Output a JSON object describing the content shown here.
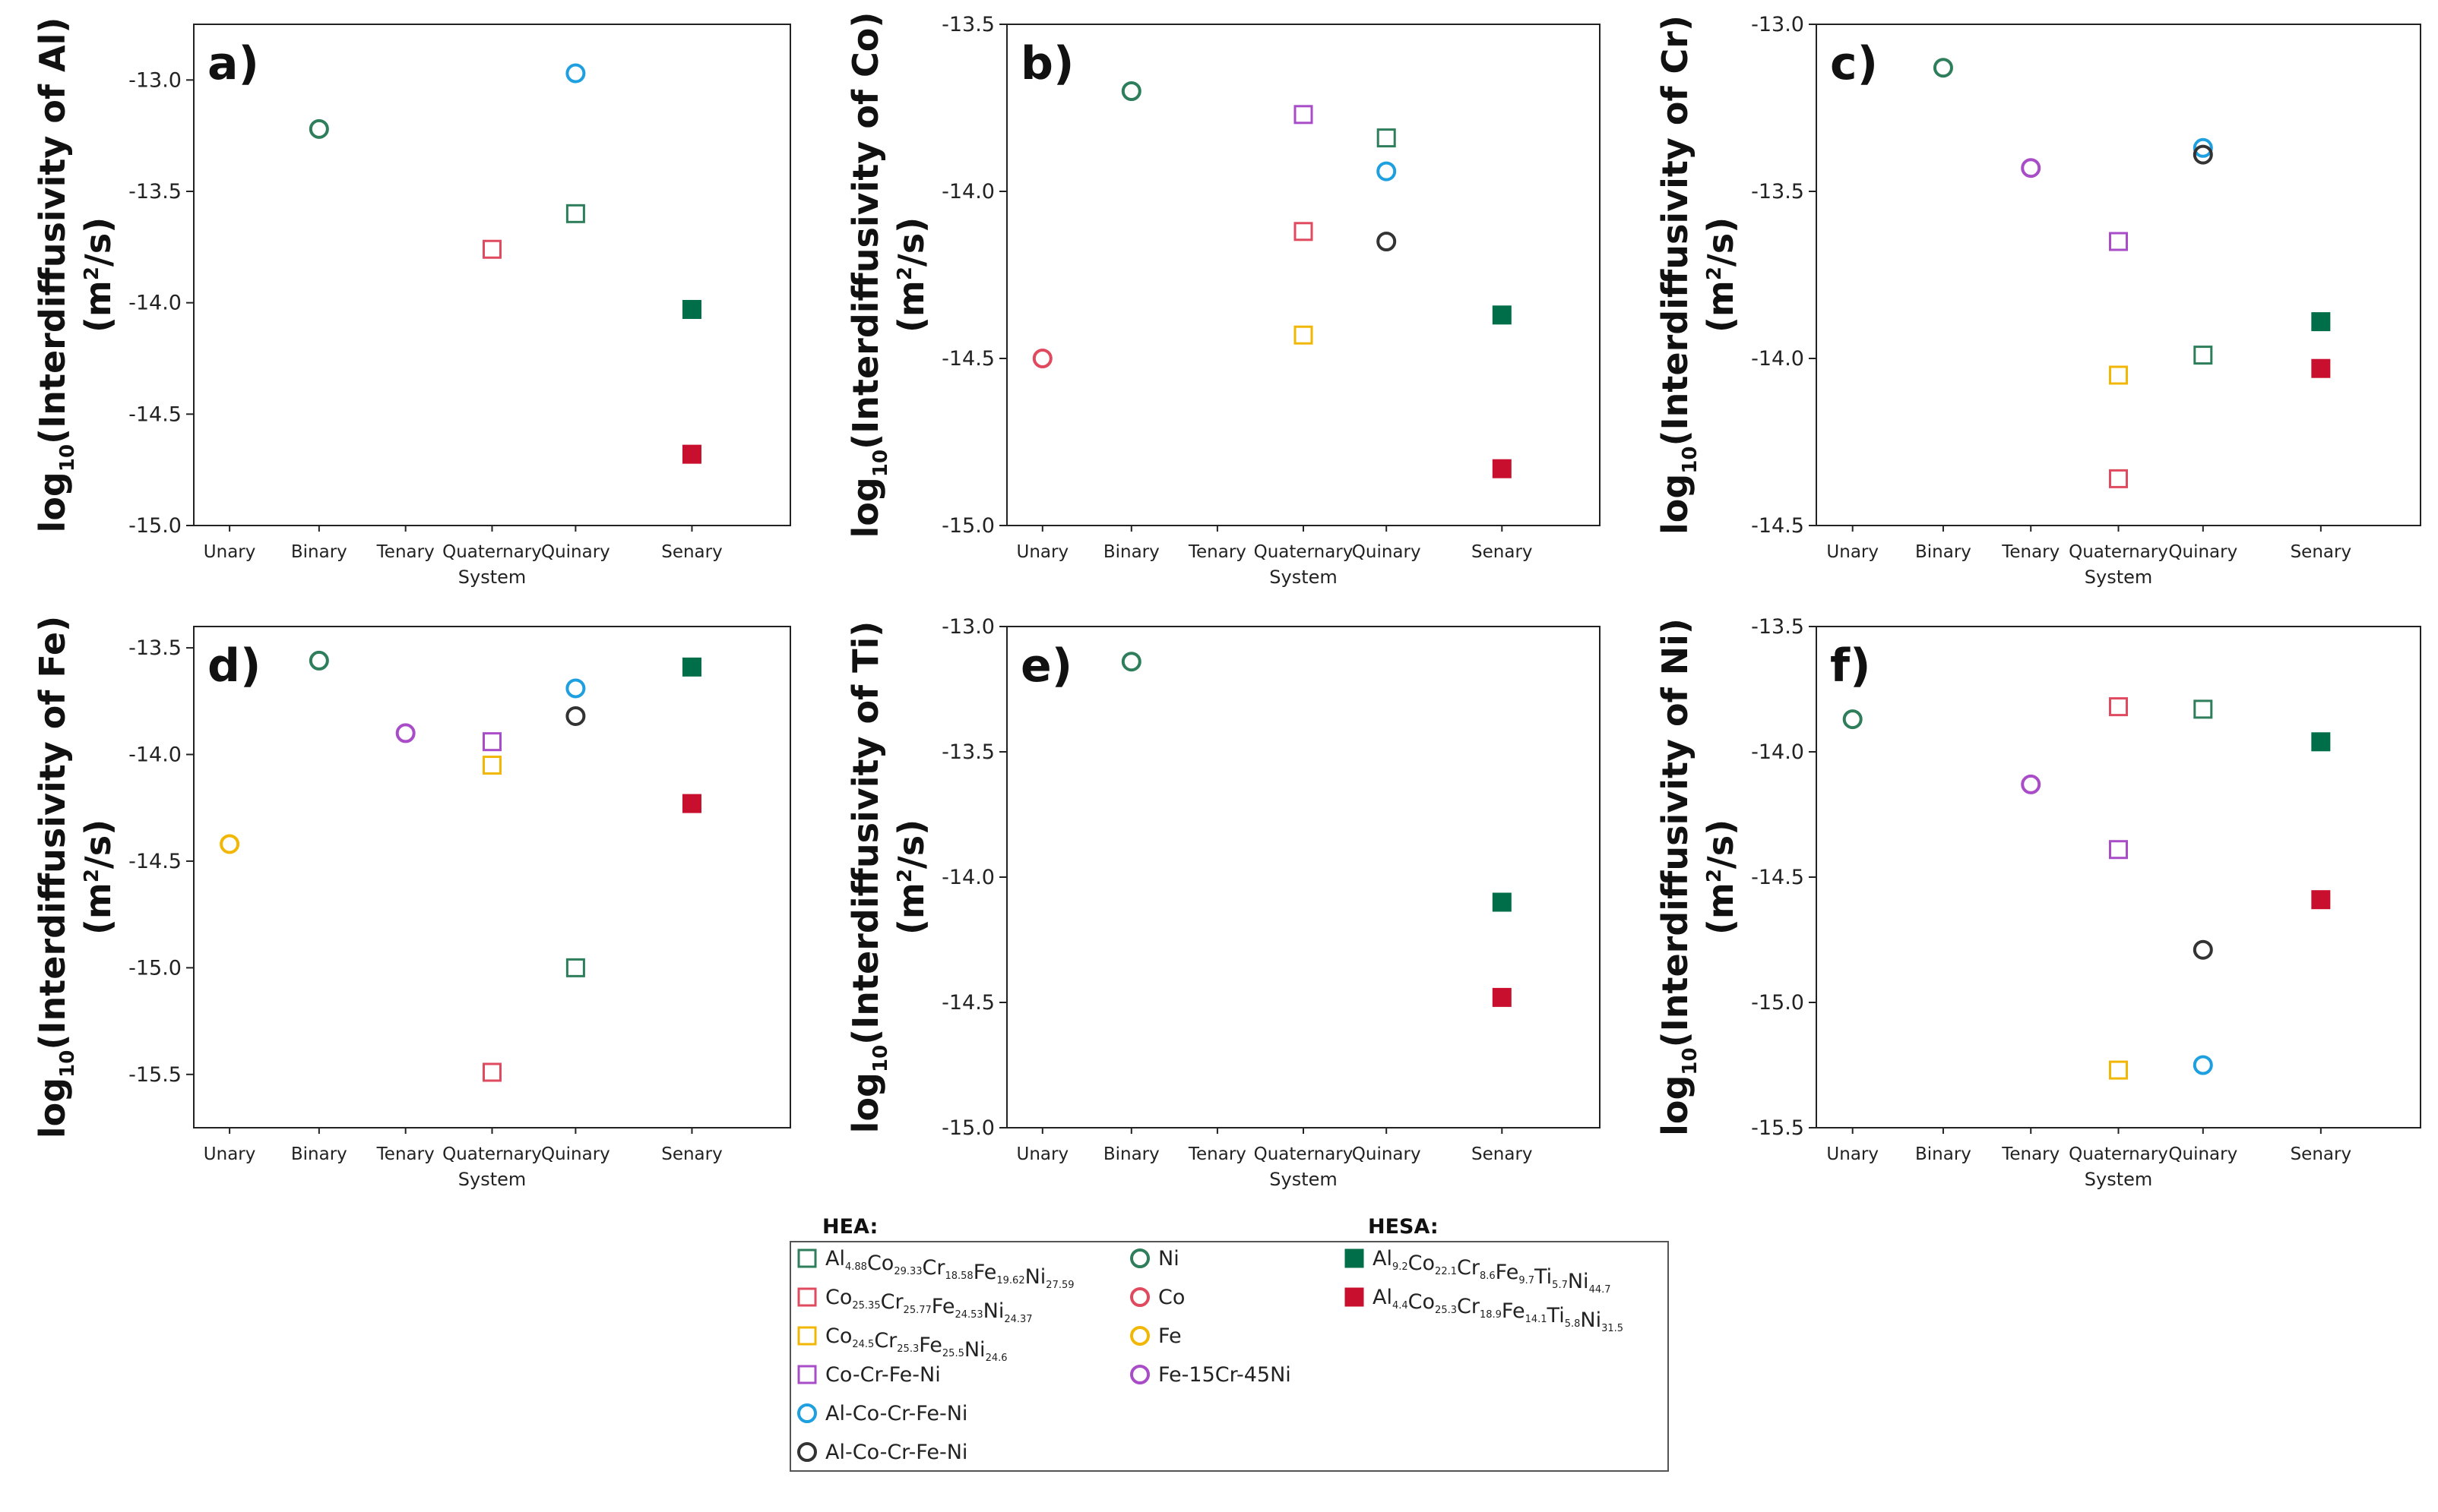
{
  "colors": {
    "green": "#2e7d5b",
    "red": "#e04a5f",
    "yellow": "#f2b705",
    "purple": "#a94cc8",
    "blue": "#1ea0e0",
    "black": "#333333",
    "green_solid": "#006e48",
    "red_solid": "#c8102e"
  },
  "chart_data": [
    {
      "id": "a",
      "type": "scatter",
      "panel_label": "a)",
      "ylabel_prefix": "log",
      "ylabel_sub": "10",
      "ylabel_main": "(Interdiffusivity of Al)",
      "ylabel_unit_pre": "(m",
      "ylabel_unit_sup": "2",
      "ylabel_unit_post": "/s)",
      "xlabel": "System",
      "categories": [
        "Unary",
        "Binary",
        "Tenary",
        "Quaternary",
        "Quinary",
        "Senary"
      ],
      "ylim": [
        -15.0,
        -12.75
      ],
      "yticks": [
        "-13.0",
        "-13.5",
        "-14.0",
        "-14.5",
        "-15.0"
      ],
      "ytick_values": [
        -13.0,
        -13.5,
        -14.0,
        -14.5,
        -15.0
      ],
      "points": [
        {
          "x": 1,
          "y": -13.22,
          "marker": "circle",
          "color": "green"
        },
        {
          "x": 3,
          "y": -13.76,
          "marker": "square",
          "color": "red"
        },
        {
          "x": 4,
          "y": -12.97,
          "marker": "circle",
          "color": "blue"
        },
        {
          "x": 4,
          "y": -13.6,
          "marker": "square",
          "color": "green"
        },
        {
          "x": 5,
          "y": -14.03,
          "marker": "filled-square",
          "color": "green_solid"
        },
        {
          "x": 5,
          "y": -14.68,
          "marker": "filled-square",
          "color": "red_solid"
        }
      ]
    },
    {
      "id": "b",
      "type": "scatter",
      "panel_label": "b)",
      "ylabel_prefix": "log",
      "ylabel_sub": "10",
      "ylabel_main": "(Interdiffusivity of Co)",
      "ylabel_unit_pre": "(m",
      "ylabel_unit_sup": "2",
      "ylabel_unit_post": "/s)",
      "xlabel": "System",
      "categories": [
        "Unary",
        "Binary",
        "Tenary",
        "Quaternary",
        "Quinary",
        "Senary"
      ],
      "ylim": [
        -15.0,
        -13.5
      ],
      "yticks": [
        "-13.5",
        "-14.0",
        "-14.5",
        "-15.0"
      ],
      "ytick_values": [
        -13.5,
        -14.0,
        -14.5,
        -15.0
      ],
      "points": [
        {
          "x": 0,
          "y": -14.5,
          "marker": "circle",
          "color": "red"
        },
        {
          "x": 1,
          "y": -13.7,
          "marker": "circle",
          "color": "green"
        },
        {
          "x": 3,
          "y": -13.77,
          "marker": "square",
          "color": "purple"
        },
        {
          "x": 3,
          "y": -14.12,
          "marker": "square",
          "color": "red"
        },
        {
          "x": 3,
          "y": -14.43,
          "marker": "square",
          "color": "yellow"
        },
        {
          "x": 4,
          "y": -13.84,
          "marker": "square",
          "color": "green"
        },
        {
          "x": 4,
          "y": -13.94,
          "marker": "circle",
          "color": "blue"
        },
        {
          "x": 4,
          "y": -14.15,
          "marker": "circle",
          "color": "black"
        },
        {
          "x": 5,
          "y": -14.37,
          "marker": "filled-square",
          "color": "green_solid"
        },
        {
          "x": 5,
          "y": -14.83,
          "marker": "filled-square",
          "color": "red_solid"
        }
      ]
    },
    {
      "id": "c",
      "type": "scatter",
      "panel_label": "c)",
      "ylabel_prefix": "log",
      "ylabel_sub": "10",
      "ylabel_main": "(Interdiffusivity of Cr)",
      "ylabel_unit_pre": "(m",
      "ylabel_unit_sup": "2",
      "ylabel_unit_post": "/s)",
      "xlabel": "System",
      "categories": [
        "Unary",
        "Binary",
        "Tenary",
        "Quaternary",
        "Quinary",
        "Senary"
      ],
      "ylim": [
        -14.5,
        -13.0
      ],
      "yticks": [
        "-13.0",
        "-13.5",
        "-14.0",
        "-14.5"
      ],
      "ytick_values": [
        -13.0,
        -13.5,
        -14.0,
        -14.5
      ],
      "points": [
        {
          "x": 1,
          "y": -13.13,
          "marker": "circle",
          "color": "green"
        },
        {
          "x": 2,
          "y": -13.43,
          "marker": "circle",
          "color": "purple"
        },
        {
          "x": 3,
          "y": -13.65,
          "marker": "square",
          "color": "purple"
        },
        {
          "x": 3,
          "y": -14.05,
          "marker": "square",
          "color": "yellow"
        },
        {
          "x": 3,
          "y": -14.36,
          "marker": "square",
          "color": "red"
        },
        {
          "x": 4,
          "y": -13.37,
          "marker": "circle",
          "color": "blue"
        },
        {
          "x": 4,
          "y": -13.39,
          "marker": "circle",
          "color": "black"
        },
        {
          "x": 4,
          "y": -13.99,
          "marker": "square",
          "color": "green"
        },
        {
          "x": 5,
          "y": -13.89,
          "marker": "filled-square",
          "color": "green_solid"
        },
        {
          "x": 5,
          "y": -14.03,
          "marker": "filled-square",
          "color": "red_solid"
        }
      ]
    },
    {
      "id": "d",
      "type": "scatter",
      "panel_label": "d)",
      "ylabel_prefix": "log",
      "ylabel_sub": "10",
      "ylabel_main": "(Interdiffusivity of Fe)",
      "ylabel_unit_pre": "(m",
      "ylabel_unit_sup": "2",
      "ylabel_unit_post": "/s)",
      "xlabel": "System",
      "categories": [
        "Unary",
        "Binary",
        "Tenary",
        "Quaternary",
        "Quinary",
        "Senary"
      ],
      "ylim": [
        -15.75,
        -13.4
      ],
      "yticks": [
        "-13.5",
        "-14.0",
        "-14.5",
        "-15.0",
        "-15.5"
      ],
      "ytick_values": [
        -13.5,
        -14.0,
        -14.5,
        -15.0,
        -15.5
      ],
      "points": [
        {
          "x": 0,
          "y": -14.42,
          "marker": "circle",
          "color": "yellow"
        },
        {
          "x": 1,
          "y": -13.56,
          "marker": "circle",
          "color": "green"
        },
        {
          "x": 2,
          "y": -13.9,
          "marker": "circle",
          "color": "purple"
        },
        {
          "x": 3,
          "y": -13.94,
          "marker": "square",
          "color": "purple"
        },
        {
          "x": 3,
          "y": -14.05,
          "marker": "square",
          "color": "yellow"
        },
        {
          "x": 3,
          "y": -15.49,
          "marker": "square",
          "color": "red"
        },
        {
          "x": 4,
          "y": -13.69,
          "marker": "circle",
          "color": "blue"
        },
        {
          "x": 4,
          "y": -13.82,
          "marker": "circle",
          "color": "black"
        },
        {
          "x": 4,
          "y": -15.0,
          "marker": "square",
          "color": "green"
        },
        {
          "x": 5,
          "y": -13.59,
          "marker": "filled-square",
          "color": "green_solid"
        },
        {
          "x": 5,
          "y": -14.23,
          "marker": "filled-square",
          "color": "red_solid"
        }
      ]
    },
    {
      "id": "e",
      "type": "scatter",
      "panel_label": "e)",
      "ylabel_prefix": "log",
      "ylabel_sub": "10",
      "ylabel_main": "(Interdiffusivity of Ti)",
      "ylabel_unit_pre": "(m",
      "ylabel_unit_sup": "2",
      "ylabel_unit_post": "/s)",
      "xlabel": "System",
      "categories": [
        "Unary",
        "Binary",
        "Tenary",
        "Quaternary",
        "Quinary",
        "Senary"
      ],
      "ylim": [
        -15.0,
        -13.0
      ],
      "yticks": [
        "-13.0",
        "-13.5",
        "-14.0",
        "-14.5",
        "-15.0"
      ],
      "ytick_values": [
        -13.0,
        -13.5,
        -14.0,
        -14.5,
        -15.0
      ],
      "points": [
        {
          "x": 1,
          "y": -13.14,
          "marker": "circle",
          "color": "green"
        },
        {
          "x": 5,
          "y": -14.1,
          "marker": "filled-square",
          "color": "green_solid"
        },
        {
          "x": 5,
          "y": -14.48,
          "marker": "filled-square",
          "color": "red_solid"
        }
      ]
    },
    {
      "id": "f",
      "type": "scatter",
      "panel_label": "f)",
      "ylabel_prefix": "log",
      "ylabel_sub": "10",
      "ylabel_main": "(Interdiffusivity of Ni)",
      "ylabel_unit_pre": "(m",
      "ylabel_unit_sup": "2",
      "ylabel_unit_post": "/s)",
      "xlabel": "System",
      "categories": [
        "Unary",
        "Binary",
        "Tenary",
        "Quaternary",
        "Quinary",
        "Senary"
      ],
      "ylim": [
        -15.5,
        -13.5
      ],
      "yticks": [
        "-13.5",
        "-14.0",
        "-14.5",
        "-15.0",
        "-15.5"
      ],
      "ytick_values": [
        -13.5,
        -14.0,
        -14.5,
        -15.0,
        -15.5
      ],
      "points": [
        {
          "x": 0,
          "y": -13.87,
          "marker": "circle",
          "color": "green"
        },
        {
          "x": 2,
          "y": -14.13,
          "marker": "circle",
          "color": "purple"
        },
        {
          "x": 3,
          "y": -13.82,
          "marker": "square",
          "color": "red"
        },
        {
          "x": 3,
          "y": -14.39,
          "marker": "square",
          "color": "purple"
        },
        {
          "x": 3,
          "y": -15.27,
          "marker": "square",
          "color": "yellow"
        },
        {
          "x": 4,
          "y": -13.83,
          "marker": "square",
          "color": "green"
        },
        {
          "x": 4,
          "y": -14.79,
          "marker": "circle",
          "color": "black"
        },
        {
          "x": 4,
          "y": -15.25,
          "marker": "circle",
          "color": "blue"
        },
        {
          "x": 5,
          "y": -13.96,
          "marker": "filled-square",
          "color": "green_solid"
        },
        {
          "x": 5,
          "y": -14.59,
          "marker": "filled-square",
          "color": "red_solid"
        }
      ]
    }
  ],
  "legend": {
    "hea_title": "HEA:",
    "hesa_title": "HESA:",
    "hea_alloys": [
      {
        "marker": "square",
        "color": "green",
        "parts": [
          [
            "Al",
            "4.88"
          ],
          [
            "Co",
            "29.33"
          ],
          [
            "Cr",
            "18.58"
          ],
          [
            "Fe",
            "19.62"
          ],
          [
            "Ni",
            "27.59"
          ]
        ]
      },
      {
        "marker": "square",
        "color": "red",
        "parts": [
          [
            "Co",
            "25.35"
          ],
          [
            "Cr",
            "25.77"
          ],
          [
            "Fe",
            "24.53"
          ],
          [
            "Ni",
            "24.37"
          ]
        ]
      },
      {
        "marker": "square",
        "color": "yellow",
        "parts": [
          [
            "Co",
            "24.5"
          ],
          [
            "Cr",
            "25.3"
          ],
          [
            "Fe",
            "25.5"
          ],
          [
            "Ni",
            "24.6"
          ]
        ]
      },
      {
        "marker": "square",
        "color": "purple",
        "text": "Co-Cr-Fe-Ni"
      },
      {
        "marker": "circle",
        "color": "blue",
        "text": "Al-Co-Cr-Fe-Ni"
      },
      {
        "marker": "circle",
        "color": "black",
        "text": "Al-Co-Cr-Fe-Ni"
      }
    ],
    "simple": [
      {
        "marker": "circle",
        "color": "green",
        "text": "Ni"
      },
      {
        "marker": "circle",
        "color": "red",
        "text": "Co"
      },
      {
        "marker": "circle",
        "color": "yellow",
        "text": "Fe"
      },
      {
        "marker": "circle",
        "color": "purple",
        "text": "Fe-15Cr-45Ni"
      }
    ],
    "hesa_alloys": [
      {
        "marker": "filled-square",
        "color": "green_solid",
        "parts": [
          [
            "Al",
            "9.2"
          ],
          [
            "Co",
            "22.1"
          ],
          [
            "Cr",
            "8.6"
          ],
          [
            "Fe",
            "9.7"
          ],
          [
            "Ti",
            "5.7"
          ],
          [
            "Ni",
            "44.7"
          ]
        ]
      },
      {
        "marker": "filled-square",
        "color": "red_solid",
        "parts": [
          [
            "Al",
            "4.4"
          ],
          [
            "Co",
            "25.3"
          ],
          [
            "Cr",
            "18.9"
          ],
          [
            "Fe",
            "14.1"
          ],
          [
            "Ti",
            "5.8"
          ],
          [
            "Ni",
            "31.5"
          ]
        ]
      }
    ]
  }
}
